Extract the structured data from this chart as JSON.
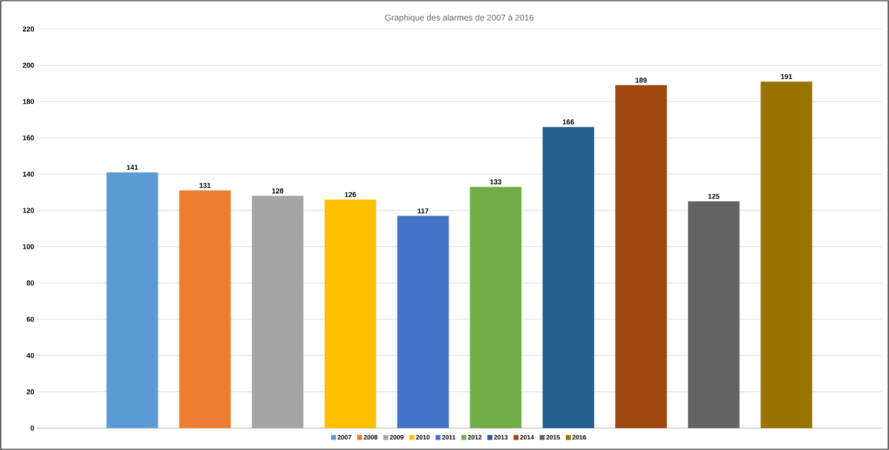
{
  "chart_data": {
    "type": "bar",
    "title": "Graphique des alarmes de 2007 à 2016",
    "categories": [
      null
    ],
    "series": [
      {
        "name": "2007",
        "color": "#5b9bd5",
        "values": [
          141
        ]
      },
      {
        "name": "2008",
        "color": "#ed7d31",
        "values": [
          131
        ]
      },
      {
        "name": "2009",
        "color": "#a5a5a5",
        "values": [
          128
        ]
      },
      {
        "name": "2010",
        "color": "#ffc000",
        "values": [
          126
        ]
      },
      {
        "name": "2011",
        "color": "#4472c4",
        "values": [
          117
        ]
      },
      {
        "name": "2012",
        "color": "#70ad47",
        "values": [
          133
        ]
      },
      {
        "name": "2013",
        "color": "#255e91",
        "values": [
          166
        ]
      },
      {
        "name": "2014",
        "color": "#9e480e",
        "values": [
          189
        ]
      },
      {
        "name": "2015",
        "color": "#636363",
        "values": [
          125
        ]
      },
      {
        "name": "2016",
        "color": "#997300",
        "values": [
          191
        ]
      }
    ],
    "ylim": [
      0,
      220
    ],
    "yticks": [
      0,
      20,
      40,
      60,
      80,
      100,
      120,
      140,
      160,
      180,
      200,
      220
    ],
    "grid": "y",
    "legend": "bottom",
    "data_labels": true
  }
}
